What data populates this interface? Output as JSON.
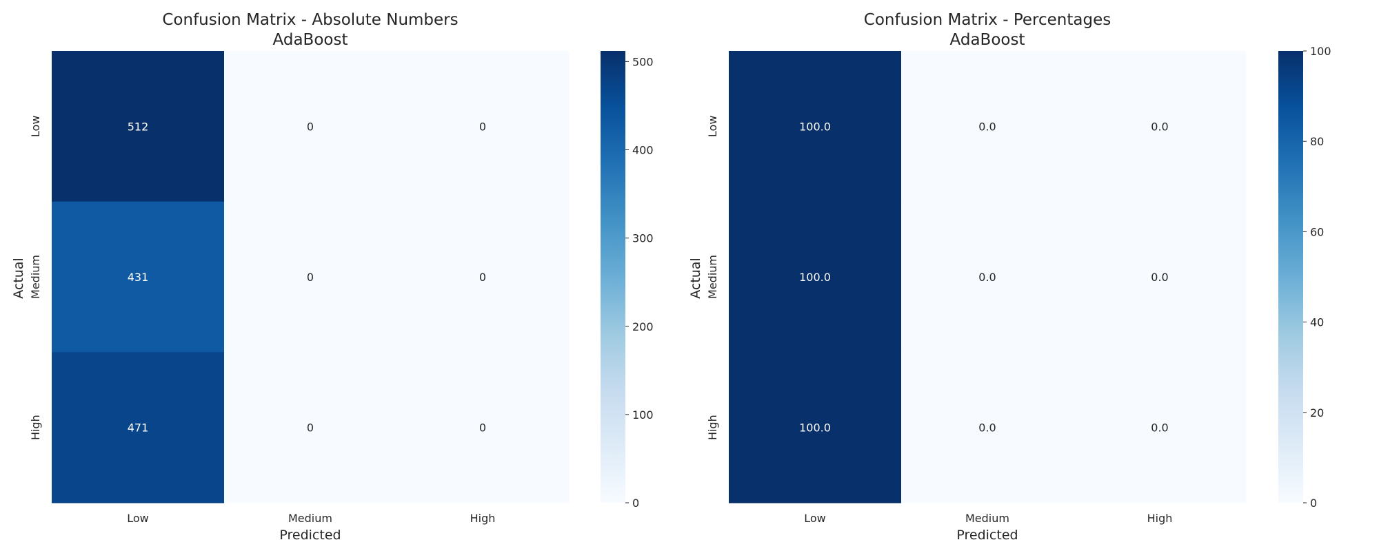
{
  "chart_data": [
    {
      "type": "heatmap",
      "title": "Confusion Matrix - Absolute Numbers",
      "subtitle": "AdaBoost",
      "xlabel": "Predicted",
      "ylabel": "Actual",
      "x_categories": [
        "Low",
        "Medium",
        "High"
      ],
      "y_categories": [
        "Low",
        "Medium",
        "High"
      ],
      "values": [
        [
          512,
          0,
          0
        ],
        [
          431,
          0,
          0
        ],
        [
          471,
          0,
          0
        ]
      ],
      "cell_labels": [
        [
          "512",
          "0",
          "0"
        ],
        [
          "431",
          "0",
          "0"
        ],
        [
          "471",
          "0",
          "0"
        ]
      ],
      "colormap": "Blues",
      "vmin": 0,
      "vmax": 512,
      "colorbar_ticks": [
        0,
        100,
        200,
        300,
        400,
        500
      ],
      "colorbar_tick_labels": [
        "0",
        "100",
        "200",
        "300",
        "400",
        "500"
      ]
    },
    {
      "type": "heatmap",
      "title": "Confusion Matrix - Percentages",
      "subtitle": "AdaBoost",
      "xlabel": "Predicted",
      "ylabel": "Actual",
      "x_categories": [
        "Low",
        "Medium",
        "High"
      ],
      "y_categories": [
        "Low",
        "Medium",
        "High"
      ],
      "values": [
        [
          100.0,
          0.0,
          0.0
        ],
        [
          100.0,
          0.0,
          0.0
        ],
        [
          100.0,
          0.0,
          0.0
        ]
      ],
      "cell_labels": [
        [
          "100.0",
          "0.0",
          "0.0"
        ],
        [
          "100.0",
          "0.0",
          "0.0"
        ],
        [
          "100.0",
          "0.0",
          "0.0"
        ]
      ],
      "colormap": "Blues",
      "vmin": 0,
      "vmax": 100,
      "colorbar_ticks": [
        0,
        20,
        40,
        60,
        80,
        100
      ],
      "colorbar_tick_labels": [
        "0",
        "20",
        "40",
        "60",
        "80",
        "100"
      ]
    }
  ],
  "colors": {
    "blues_min": "#f7fbff",
    "blues_max": "#08306b",
    "text_dark": "#262626",
    "text_light": "#ffffff"
  }
}
